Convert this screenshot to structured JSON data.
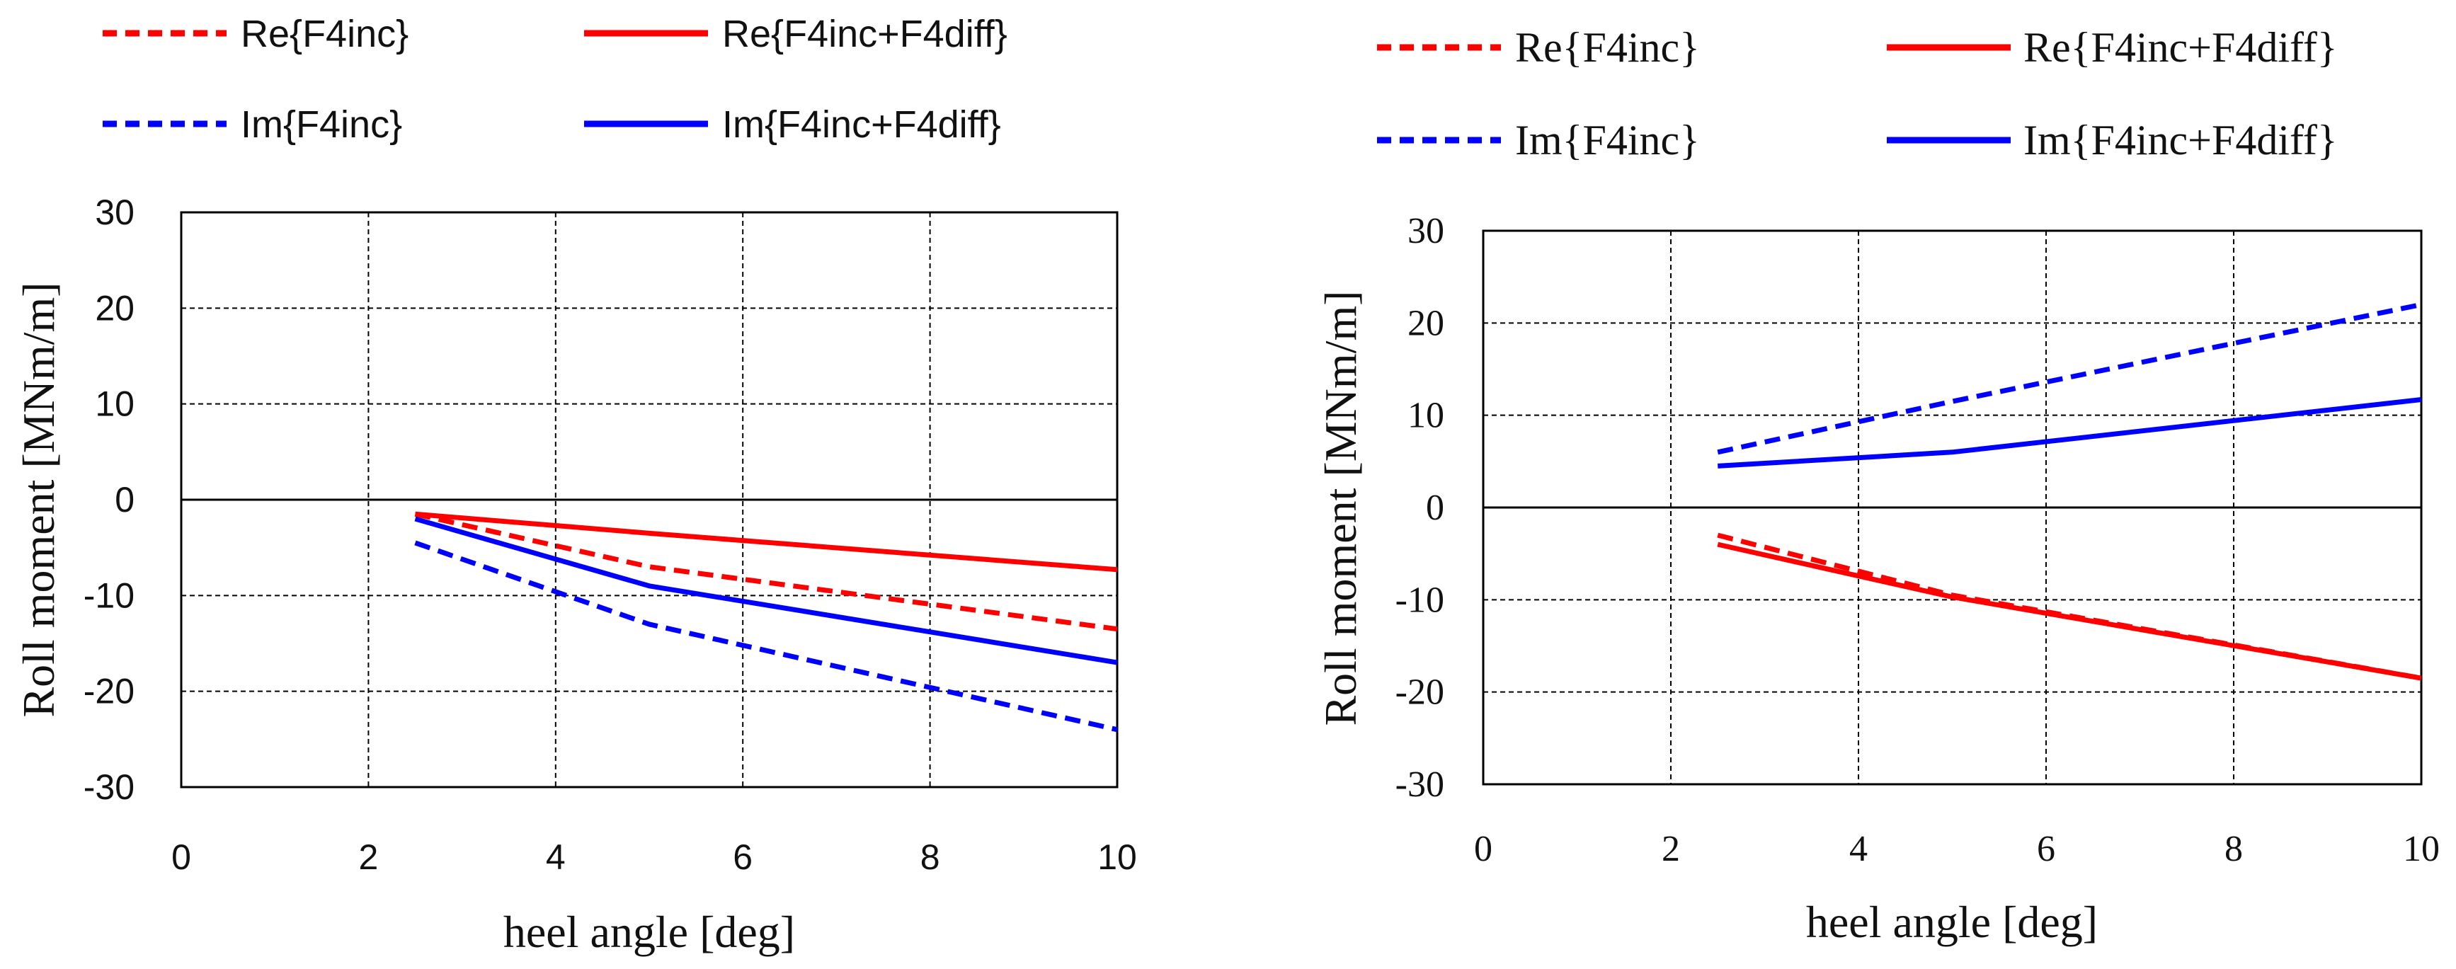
{
  "chart_data": [
    {
      "type": "line",
      "xlabel": "heel angle   [deg]",
      "ylabel": "Roll moment   [MNm/m]",
      "xlim": [
        0,
        10
      ],
      "ylim": [
        -30,
        30
      ],
      "xticks": [
        0,
        2,
        4,
        6,
        8,
        10
      ],
      "yticks": [
        30,
        20,
        10,
        0,
        -10,
        -20,
        -30
      ],
      "grid": true,
      "legend_position": "top",
      "series": [
        {
          "name": "Re{F4inc}",
          "color": "#ff0000",
          "style": "dashed",
          "x": [
            2.5,
            5,
            10
          ],
          "y": [
            -1.5,
            -7,
            -13.5
          ]
        },
        {
          "name": "Re{F4inc+F4diff}",
          "color": "#ff0000",
          "style": "solid",
          "x": [
            2.5,
            5,
            10
          ],
          "y": [
            -1.5,
            -3.5,
            -7.3
          ]
        },
        {
          "name": "Im{F4inc}",
          "color": "#0000ff",
          "style": "dashed",
          "x": [
            2.5,
            5,
            10
          ],
          "y": [
            -4.5,
            -13,
            -24
          ]
        },
        {
          "name": "Im{F4inc+F4diff}",
          "color": "#0000ff",
          "style": "solid",
          "x": [
            2.5,
            5,
            10
          ],
          "y": [
            -2,
            -9,
            -17
          ]
        }
      ]
    },
    {
      "type": "line",
      "xlabel": "heel angle   [deg]",
      "ylabel": "Roll moment   [MNm/m]",
      "xlim": [
        0,
        10
      ],
      "ylim": [
        -30,
        30
      ],
      "xticks": [
        0,
        2,
        4,
        6,
        8,
        10
      ],
      "yticks": [
        30,
        20,
        10,
        0,
        -10,
        -20,
        -30
      ],
      "grid": true,
      "legend_position": "top",
      "series": [
        {
          "name": "Re{F4inc}",
          "color": "#ff0000",
          "style": "dashed",
          "x": [
            2.5,
            5,
            10
          ],
          "y": [
            -3,
            -9.5,
            -18.5
          ]
        },
        {
          "name": "Re{F4inc+F4diff}",
          "color": "#ff0000",
          "style": "solid",
          "x": [
            2.5,
            5,
            10
          ],
          "y": [
            -4,
            -9.7,
            -18.5
          ]
        },
        {
          "name": "Im{F4inc}",
          "color": "#0000ff",
          "style": "dashed",
          "x": [
            2.5,
            5,
            10
          ],
          "y": [
            6,
            11.5,
            22
          ]
        },
        {
          "name": "Im{F4inc+F4diff}",
          "color": "#0000ff",
          "style": "solid",
          "x": [
            2.5,
            5,
            10
          ],
          "y": [
            4.5,
            6,
            11.7
          ]
        }
      ]
    }
  ]
}
